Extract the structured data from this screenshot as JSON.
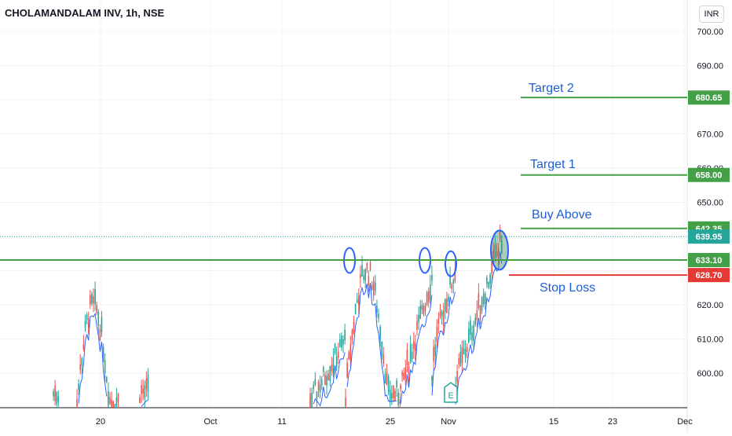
{
  "header": {
    "title": "CHOLAMANDALAM INV, 1h, NSE",
    "currency": "INR"
  },
  "colors": {
    "up": "#26a69a",
    "down": "#ef5350",
    "ma": "#2962ff",
    "green_line": "#43a047",
    "red_line": "#e53935",
    "current_price": "#26a69a",
    "annotation": "#1e5fd8",
    "circle_fill": "#4a8c6a"
  },
  "chart_data": {
    "type": "candlestick",
    "title": "CHOLAMANDALAM INV, 1h, NSE",
    "x_tick_labels": [
      "20",
      "Oct",
      "11",
      "25",
      "Nov",
      "15",
      "23",
      "Dec"
    ],
    "y_ticks": [
      600,
      610,
      620,
      630,
      640,
      650,
      660,
      670,
      680,
      690,
      700
    ],
    "ylim": [
      590.5,
      706
    ],
    "grid": true,
    "price_levels": [
      {
        "label": "Target 2",
        "value": 680.65,
        "price_text": "680.65",
        "color": "green"
      },
      {
        "label": "Target 1",
        "value": 658.0,
        "price_text": "658.00",
        "color": "green"
      },
      {
        "label": "Buy Above",
        "value": 642.35,
        "price_text": "642.35",
        "color": "green"
      },
      {
        "label": "",
        "value": 639.95,
        "price_text": "639.95",
        "color": "current"
      },
      {
        "label": "",
        "value": 633.1,
        "price_text": "633.10",
        "color": "green"
      },
      {
        "label": "Stop Loss",
        "value": 628.7,
        "price_text": "628.70",
        "color": "red"
      }
    ],
    "annotations": [
      {
        "type": "circle",
        "date": "Oct 20",
        "value": 633
      },
      {
        "type": "circle",
        "date": "Oct 28",
        "value": 633
      },
      {
        "type": "circle",
        "date": "Oct 31",
        "value": 632
      },
      {
        "type": "circle-filled",
        "date": "Nov 5",
        "value": 636
      }
    ],
    "events": [
      {
        "label": "E",
        "date": "Oct 31"
      }
    ],
    "clusters": [
      {
        "start": 68,
        "end": 76,
        "base": 591,
        "peak": 596,
        "trend": "flat"
      },
      {
        "start": 98,
        "end": 152,
        "base": 592,
        "peak": 620,
        "trend": "peak-early"
      },
      {
        "start": 178,
        "end": 190,
        "base": 591,
        "peak": 597,
        "trend": "flat"
      },
      {
        "start": 395,
        "end": 440,
        "base": 592,
        "peak": 610,
        "trend": "rising"
      },
      {
        "start": 440,
        "end": 510,
        "base": 594,
        "peak": 630,
        "trend": "peak-early"
      },
      {
        "start": 510,
        "end": 550,
        "base": 595,
        "peak": 628,
        "trend": "rising"
      },
      {
        "start": 550,
        "end": 580,
        "base": 600,
        "peak": 630,
        "trend": "peak-late"
      },
      {
        "start": 580,
        "end": 640,
        "base": 598,
        "peak": 640,
        "trend": "rising"
      }
    ]
  }
}
